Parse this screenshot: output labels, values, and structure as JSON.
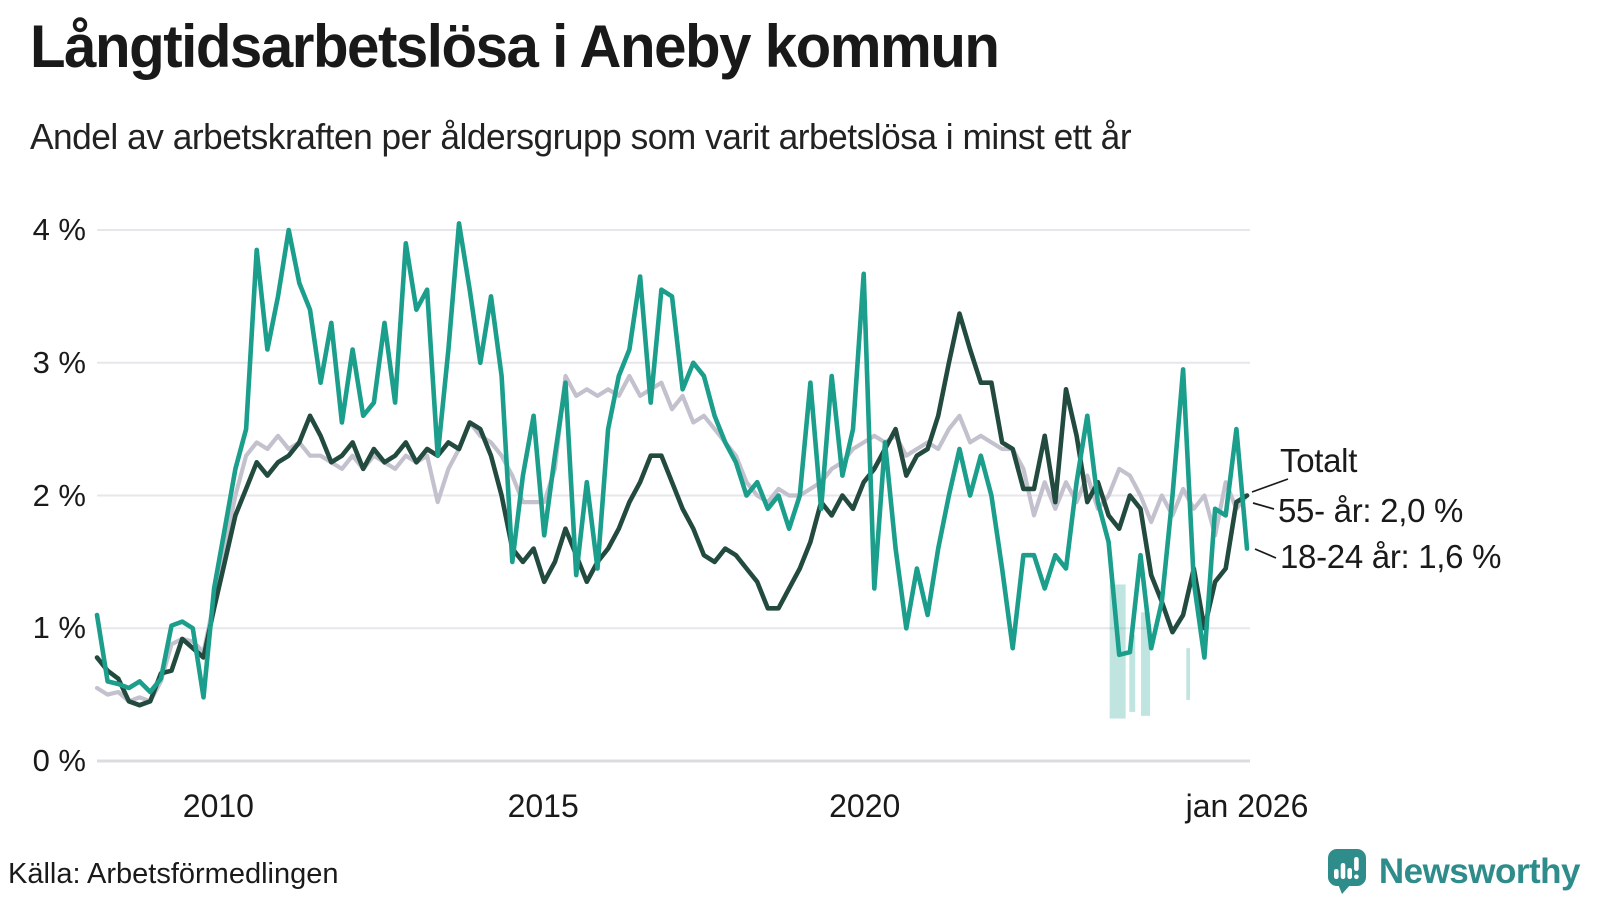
{
  "title": "Långtidsarbetslösa i Aneby kommun",
  "subtitle": "Andel av arbetskraften per åldersgrupp som varit arbetslösa i minst ett år",
  "source": "Källa: Arbetsförmedlingen",
  "brand": {
    "name": "Newsworthy",
    "color": "#2e8c8a"
  },
  "annotations": {
    "total_label": "Totalt",
    "older_label": "55- år: 2,0 %",
    "young_label": "18-24 år: 1,6 %"
  },
  "chart_data": {
    "type": "line",
    "unit": "%",
    "x_period": "monatliga värden från början av 2008 till jan 2026",
    "grid": true,
    "grid_color": "#e7e6ea",
    "zero_line_color": "#dcdbe0",
    "ylim": [
      0,
      4.3
    ],
    "y_ticks": [
      {
        "label": "0 %",
        "value": 0
      },
      {
        "label": "1 %",
        "value": 1
      },
      {
        "label": "2 %",
        "value": 2
      },
      {
        "label": "3 %",
        "value": 3
      },
      {
        "label": "4 %",
        "value": 4
      }
    ],
    "x_ticks": [
      {
        "label": "2010",
        "i": 11.4
      },
      {
        "label": "2015",
        "i": 41.9
      },
      {
        "label": "2020",
        "i": 72.1
      },
      {
        "label": "jan 2026",
        "i": 108
      }
    ],
    "series": [
      {
        "name": "Totalt",
        "color": "#c4c1ce",
        "stroke_width": 4.2,
        "end_value": 2.0,
        "values": [
          0.55,
          0.5,
          0.52,
          0.45,
          0.48,
          0.45,
          0.6,
          0.88,
          0.92,
          0.9,
          0.82,
          1.2,
          1.6,
          2.0,
          2.3,
          2.4,
          2.35,
          2.45,
          2.35,
          2.4,
          2.3,
          2.3,
          2.25,
          2.2,
          2.3,
          2.2,
          2.3,
          2.25,
          2.2,
          2.3,
          2.25,
          2.3,
          1.95,
          2.2,
          2.35,
          2.55,
          2.45,
          2.4,
          2.3,
          2.15,
          1.95,
          1.95,
          1.95,
          2.2,
          2.9,
          2.75,
          2.8,
          2.75,
          2.8,
          2.75,
          2.9,
          2.75,
          2.8,
          2.85,
          2.65,
          2.75,
          2.55,
          2.6,
          2.5,
          2.4,
          2.3,
          2.1,
          2.0,
          1.95,
          2.05,
          2.0,
          2.0,
          2.05,
          2.1,
          2.2,
          2.25,
          2.35,
          2.4,
          2.45,
          2.4,
          2.45,
          2.3,
          2.35,
          2.4,
          2.35,
          2.5,
          2.6,
          2.4,
          2.45,
          2.4,
          2.35,
          2.35,
          2.2,
          1.85,
          2.1,
          1.9,
          2.1,
          1.95,
          2.15,
          1.9,
          2.0,
          2.2,
          2.15,
          2.0,
          1.8,
          2.0,
          1.85,
          2.05,
          1.9,
          2.0,
          1.7,
          2.1,
          1.9,
          2.0
        ]
      },
      {
        "name": "55- år",
        "color": "#224a3e",
        "stroke_width": 4.6,
        "end_value": 2.0,
        "values": [
          0.78,
          0.68,
          0.62,
          0.45,
          0.42,
          0.45,
          0.66,
          0.68,
          0.92,
          0.85,
          0.78,
          1.15,
          1.5,
          1.85,
          2.05,
          2.25,
          2.15,
          2.25,
          2.3,
          2.4,
          2.6,
          2.45,
          2.25,
          2.3,
          2.4,
          2.2,
          2.35,
          2.25,
          2.3,
          2.4,
          2.25,
          2.35,
          2.3,
          2.4,
          2.35,
          2.55,
          2.5,
          2.3,
          2.0,
          1.6,
          1.5,
          1.6,
          1.35,
          1.5,
          1.75,
          1.55,
          1.35,
          1.5,
          1.6,
          1.75,
          1.95,
          2.1,
          2.3,
          2.3,
          2.1,
          1.9,
          1.75,
          1.55,
          1.5,
          1.6,
          1.55,
          1.45,
          1.35,
          1.15,
          1.15,
          1.3,
          1.45,
          1.65,
          1.95,
          1.85,
          2.0,
          1.9,
          2.1,
          2.2,
          2.35,
          2.5,
          2.15,
          2.3,
          2.35,
          2.6,
          3.0,
          3.37,
          3.1,
          2.85,
          2.85,
          2.4,
          2.35,
          2.05,
          2.05,
          2.45,
          1.95,
          2.8,
          2.45,
          1.95,
          2.1,
          1.85,
          1.75,
          2.0,
          1.9,
          1.4,
          1.2,
          0.97,
          1.1,
          1.45,
          1.0,
          1.35,
          1.45,
          1.95,
          2.0
        ]
      },
      {
        "name": "18-24 år",
        "color": "#1b9e8b",
        "stroke_width": 4.6,
        "end_value": 1.6,
        "values": [
          1.1,
          0.6,
          0.58,
          0.55,
          0.6,
          0.52,
          0.62,
          1.02,
          1.05,
          1.0,
          0.48,
          1.3,
          1.75,
          2.2,
          2.5,
          3.85,
          3.1,
          3.5,
          4.0,
          3.6,
          3.4,
          2.85,
          3.3,
          2.55,
          3.1,
          2.6,
          2.7,
          3.3,
          2.7,
          3.9,
          3.4,
          3.55,
          2.3,
          3.1,
          4.05,
          3.55,
          3.0,
          3.5,
          2.9,
          1.5,
          2.15,
          2.6,
          1.7,
          2.3,
          2.85,
          1.4,
          2.1,
          1.45,
          2.5,
          2.9,
          3.1,
          3.65,
          2.7,
          3.55,
          3.5,
          2.8,
          3.0,
          2.9,
          2.6,
          2.4,
          2.25,
          2.0,
          2.1,
          1.9,
          2.0,
          1.75,
          2.0,
          2.85,
          1.9,
          2.9,
          2.15,
          2.5,
          3.67,
          1.3,
          2.4,
          1.6,
          1.0,
          1.45,
          1.1,
          1.6,
          2.0,
          2.35,
          2.0,
          2.3,
          2.0,
          1.45,
          0.85,
          1.55,
          1.55,
          1.3,
          1.55,
          1.45,
          2.1,
          2.6,
          1.95,
          1.65,
          0.8,
          0.82,
          1.55,
          0.85,
          1.2,
          2.0,
          2.95,
          1.35,
          0.78,
          1.9,
          1.85,
          2.5,
          1.6
        ]
      }
    ],
    "uncertainty_bars": [
      {
        "from": 95.1,
        "to": 96.6,
        "top": 1.33,
        "bottom": 0.32
      },
      {
        "from": 96.95,
        "to": 97.5,
        "top": 0.95,
        "bottom": 0.37
      },
      {
        "from": 98.05,
        "to": 98.9,
        "top": 1.12,
        "bottom": 0.34
      },
      {
        "from": 102.3,
        "to": 102.65,
        "top": 0.85,
        "bottom": 0.46
      }
    ],
    "uncertainty_color": "#1b9e8b",
    "uncertainty_opacity": 0.28
  }
}
